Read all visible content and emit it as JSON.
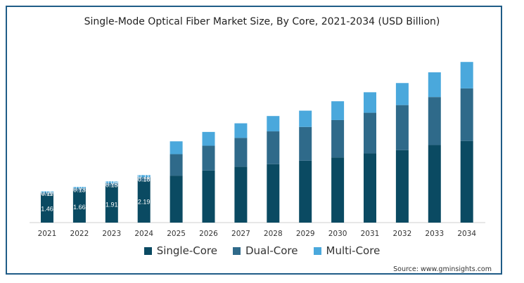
{
  "chart_data": {
    "type": "bar",
    "stacked": true,
    "title": "Single-Mode Optical Fiber Market Size, By Core, 2021-2034 (USD Billion)",
    "categories": [
      "2021",
      "2022",
      "2023",
      "2024",
      "2025",
      "2026",
      "2027",
      "2028",
      "2029",
      "2030",
      "2031",
      "2032",
      "2033",
      "2034"
    ],
    "series": [
      {
        "name": "Single-Core",
        "color": "#0a4a62",
        "values": [
          1.46,
          1.66,
          1.91,
          2.19,
          2.45,
          2.72,
          2.92,
          3.05,
          3.23,
          3.4,
          3.61,
          3.78,
          4.05,
          4.26
        ]
      },
      {
        "name": "Dual-Core",
        "color": "#2f6a8a",
        "values": [
          0.11,
          0.13,
          0.15,
          0.18,
          1.12,
          1.29,
          1.5,
          1.71,
          1.76,
          1.95,
          2.12,
          2.35,
          2.5,
          2.74
        ]
      },
      {
        "name": "Multi-Core",
        "color": "#4aa8dc",
        "values": [
          0.06,
          0.07,
          0.09,
          0.11,
          0.67,
          0.72,
          0.76,
          0.8,
          0.85,
          0.98,
          1.07,
          1.15,
          1.29,
          1.38
        ]
      }
    ],
    "data_labels": {
      "Single-Core": [
        "1.46",
        "1.66",
        "1.91",
        "2.19"
      ],
      "Dual-Core": [
        "0.11",
        "0.13",
        "0.15",
        "0.18"
      ],
      "Multi-Core": [
        "0.06",
        "0.07",
        "0.09",
        "0.11"
      ]
    },
    "legend_position": "bottom",
    "grid": false
  },
  "source": "Source: www.gminsights.com"
}
